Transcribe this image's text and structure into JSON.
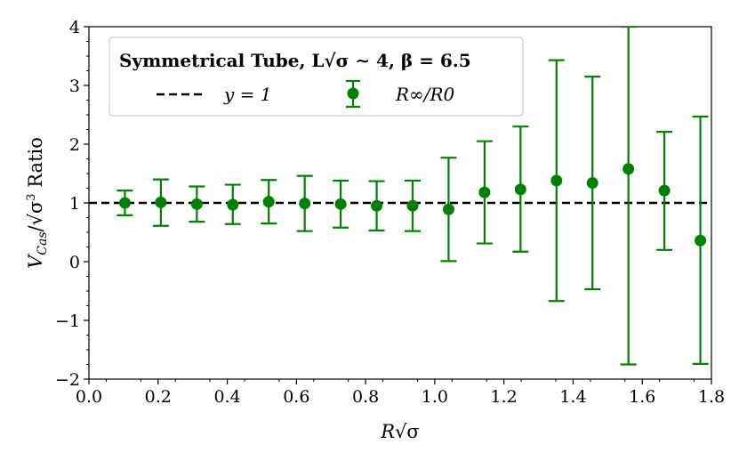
{
  "chart_data": {
    "type": "scatter",
    "title": "",
    "legend_title": "Symmetrical Tube, L√σ ∼ 4, β = 6.5",
    "xlabel": "R√σ",
    "ylabel": "V_Cas/√σ³ Ratio",
    "xlim": [
      0.0,
      1.8
    ],
    "ylim": [
      -2,
      4
    ],
    "x_ticks": [
      "0.0",
      "0.2",
      "0.4",
      "0.6",
      "0.8",
      "1.0",
      "1.2",
      "1.4",
      "1.6",
      "1.8"
    ],
    "y_ticks": [
      "−2",
      "−1",
      "0",
      "1",
      "2",
      "3",
      "4"
    ],
    "reference_line": {
      "name": "y = 1",
      "y": 1,
      "style": "dashed",
      "color": "#000000"
    },
    "series": [
      {
        "name": "R∞/R0",
        "color": "#008000",
        "x": [
          0.104,
          0.208,
          0.312,
          0.416,
          0.52,
          0.624,
          0.728,
          0.832,
          0.936,
          1.04,
          1.144,
          1.248,
          1.352,
          1.456,
          1.56,
          1.664,
          1.768
        ],
        "y": [
          1.0,
          1.01,
          0.98,
          0.97,
          1.02,
          0.99,
          0.98,
          0.95,
          0.95,
          0.89,
          1.18,
          1.23,
          1.38,
          1.34,
          1.58,
          1.21,
          0.36
        ],
        "ylow": [
          0.79,
          0.61,
          0.68,
          0.64,
          0.65,
          0.52,
          0.58,
          0.53,
          0.52,
          0.01,
          0.31,
          0.17,
          -0.67,
          -0.47,
          -1.75,
          0.2,
          -1.74
        ],
        "yhigh": [
          1.21,
          1.4,
          1.28,
          1.31,
          1.39,
          1.46,
          1.38,
          1.37,
          1.38,
          1.77,
          2.05,
          2.3,
          3.43,
          3.15,
          4.0,
          2.21,
          2.47
        ]
      }
    ],
    "legend_location": "upper-left",
    "legend_entries": [
      "y = 1",
      "R∞/R0"
    ]
  }
}
